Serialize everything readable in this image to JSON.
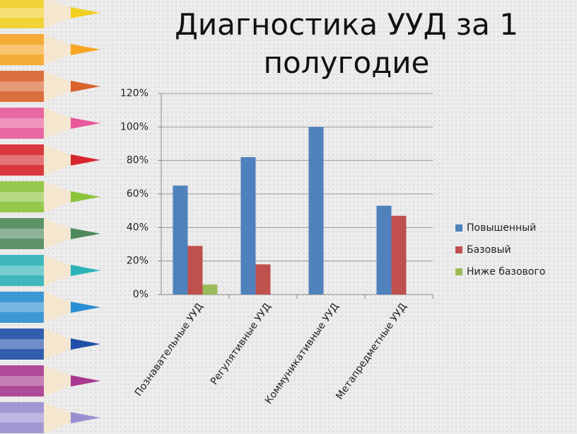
{
  "chart_data": {
    "type": "bar",
    "title": "Диагностика УУД за 1 полугодие",
    "categories": [
      "Познавательные УУД",
      "Регулятивные УУД",
      "Коммуникативные УУД",
      "Метапредметные УУД"
    ],
    "series": [
      {
        "name": "Повышенный",
        "color": "#4f81bd",
        "values": [
          65,
          82,
          100,
          53
        ]
      },
      {
        "name": "Базовый",
        "color": "#c0504d",
        "values": [
          29,
          18,
          0,
          47
        ]
      },
      {
        "name": "Ниже базового",
        "color": "#9bbb59",
        "values": [
          6,
          0,
          0,
          0
        ]
      }
    ],
    "ylim": [
      0,
      120
    ],
    "yticks": [
      {
        "value": 0,
        "label": "0%"
      },
      {
        "value": 20,
        "label": "20%"
      },
      {
        "value": 40,
        "label": "40%"
      },
      {
        "value": 60,
        "label": "60%"
      },
      {
        "value": 80,
        "label": "80%"
      },
      {
        "value": 100,
        "label": "100%"
      },
      {
        "value": 120,
        "label": "120%"
      }
    ],
    "grid": true,
    "legend": "right"
  }
}
